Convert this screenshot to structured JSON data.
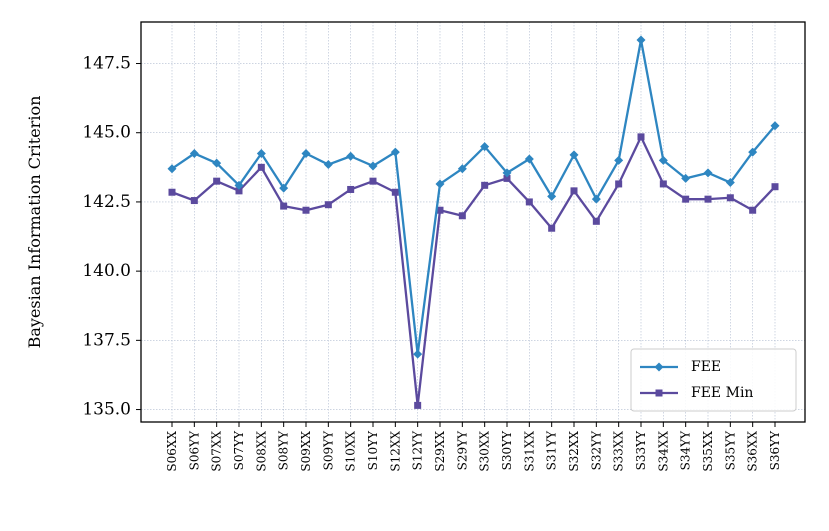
{
  "chart_data": {
    "type": "line",
    "ylabel": "Bayesian Information Criterion",
    "xlabel": "",
    "ylim": [
      134.55,
      149.0
    ],
    "yticks": [
      135.0,
      137.5,
      140.0,
      142.5,
      145.0,
      147.5
    ],
    "ytick_labels": [
      "135.0",
      "137.5",
      "140.0",
      "142.5",
      "145.0",
      "147.5"
    ],
    "grid": true,
    "legend_position": "lower-right",
    "categories": [
      "S06XX",
      "S06YY",
      "S07XX",
      "S07YY",
      "S08XX",
      "S08YY",
      "S09XX",
      "S09YY",
      "S10XX",
      "S10YY",
      "S12XX",
      "S12YY",
      "S29XX",
      "S29YY",
      "S30XX",
      "S30YY",
      "S31XX",
      "S31YY",
      "S32XX",
      "S32YY",
      "S33XX",
      "S33YY",
      "S34XX",
      "S34YY",
      "S35XX",
      "S35YY",
      "S36XX",
      "S36YY"
    ],
    "series": [
      {
        "name": "FEE",
        "color": "#2e86c1",
        "marker": "diamond",
        "values": [
          143.7,
          144.25,
          143.9,
          143.1,
          144.25,
          143.0,
          144.25,
          143.85,
          144.15,
          143.8,
          144.3,
          137.0,
          143.15,
          143.7,
          144.5,
          143.55,
          144.05,
          142.7,
          144.2,
          142.6,
          144.0,
          148.35,
          144.0,
          143.35,
          143.55,
          143.2,
          144.3,
          145.25
        ]
      },
      {
        "name": "FEE Min",
        "color": "#5b4a9e",
        "marker": "square",
        "values": [
          142.85,
          142.55,
          143.25,
          142.9,
          143.75,
          142.35,
          142.2,
          142.4,
          142.95,
          143.25,
          142.85,
          135.15,
          142.2,
          142.0,
          143.1,
          143.35,
          142.5,
          141.55,
          142.9,
          141.8,
          143.15,
          144.85,
          143.15,
          142.6,
          142.6,
          142.65,
          142.2,
          143.05
        ]
      }
    ]
  }
}
